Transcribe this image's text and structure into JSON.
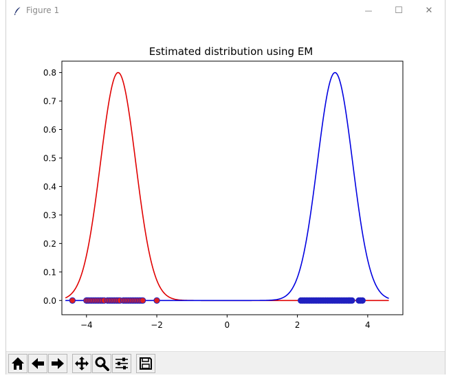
{
  "window": {
    "title": "Figure 1",
    "minimize_glyph": "—",
    "maximize_glyph": "☐",
    "close_glyph": "✕"
  },
  "toolbar": {
    "buttons": [
      {
        "name": "home-button",
        "icon": "home-icon"
      },
      {
        "name": "back-button",
        "icon": "arrow-left-icon"
      },
      {
        "name": "forward-button",
        "icon": "arrow-right-icon"
      },
      {
        "name": "pan-button",
        "icon": "move-icon"
      },
      {
        "name": "zoom-button",
        "icon": "magnifier-icon"
      },
      {
        "name": "configure-subplots-button",
        "icon": "sliders-icon"
      },
      {
        "name": "save-button",
        "icon": "floppy-disk-icon"
      }
    ]
  },
  "chart_data": {
    "type": "line",
    "title": "Estimated distribution using EM",
    "xlabel": "",
    "ylabel": "",
    "xlim": [
      -4.7,
      5.0
    ],
    "ylim": [
      -0.05,
      0.84
    ],
    "xticks": [
      -4,
      -2,
      0,
      2,
      4
    ],
    "xtick_labels": [
      "−4",
      "−2",
      "0",
      "2",
      "4"
    ],
    "yticks": [
      0.0,
      0.1,
      0.2,
      0.3,
      0.4,
      0.5,
      0.6,
      0.7,
      0.8
    ],
    "ytick_labels": [
      "0.0",
      "0.1",
      "0.2",
      "0.3",
      "0.4",
      "0.5",
      "0.6",
      "0.7",
      "0.8"
    ],
    "grid": false,
    "series": [
      {
        "color": "#e00000",
        "kind": "gaussian",
        "mu": -3.1,
        "sigma": 0.5,
        "peak": 0.8,
        "x_range": [
          -4.6,
          4.6
        ]
      },
      {
        "color": "#0000e0",
        "kind": "gaussian",
        "mu": 3.07,
        "sigma": 0.5,
        "peak": 0.8,
        "x_range": [
          -4.6,
          4.6
        ]
      }
    ],
    "scatter": [
      {
        "color": "#e02020",
        "edge": "#2020c0",
        "y": 0.0,
        "x": [
          -4.4,
          -4.0,
          -3.95,
          -3.9,
          -3.85,
          -3.8,
          -3.75,
          -3.7,
          -3.65,
          -3.6,
          -3.55,
          -3.5,
          -3.4,
          -3.35,
          -3.3,
          -3.25,
          -3.2,
          -3.15,
          -3.1,
          -3.05,
          -2.95,
          -2.9,
          -2.85,
          -2.8,
          -2.75,
          -2.7,
          -2.65,
          -2.6,
          -2.55,
          -2.5,
          -2.45,
          -2.4,
          -2.0
        ]
      },
      {
        "color": "#2020c0",
        "edge": "#2020c0",
        "y": 0.0,
        "x": [
          2.1,
          2.15,
          2.2,
          2.25,
          2.3,
          2.35,
          2.4,
          2.45,
          2.5,
          2.55,
          2.6,
          2.65,
          2.7,
          2.75,
          2.8,
          2.85,
          2.9,
          2.95,
          3.0,
          3.05,
          3.1,
          3.15,
          3.2,
          3.25,
          3.3,
          3.35,
          3.4,
          3.45,
          3.5,
          3.55,
          3.75,
          3.8,
          3.85
        ]
      }
    ]
  }
}
